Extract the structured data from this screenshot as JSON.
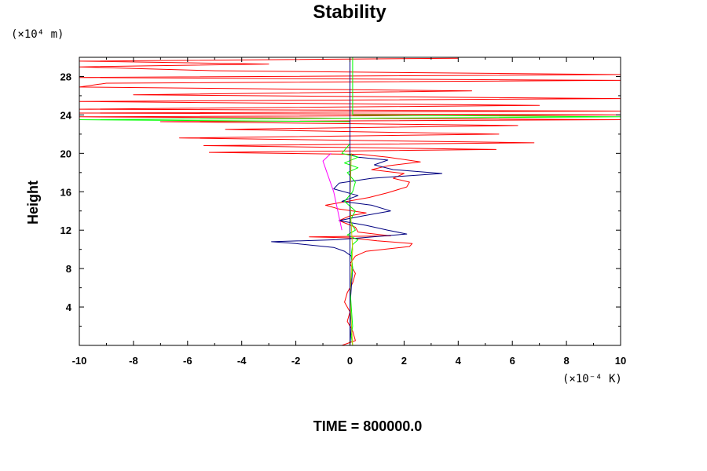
{
  "chart_data": {
    "type": "line",
    "title": "Stability",
    "ylabel": "Height",
    "xlabel": "",
    "y_unit": "(×10⁴ m)",
    "x_unit": "(×10⁻⁴ K)",
    "footer": "TIME = 800000.0",
    "xlim": [
      -10,
      10
    ],
    "ylim": [
      0,
      30
    ],
    "x_ticks": [
      -10,
      -8,
      -6,
      -4,
      -2,
      0,
      2,
      4,
      6,
      8,
      10
    ],
    "x_tick_labels": [
      "-10",
      "-8",
      "-6",
      "-4",
      "-2",
      "0",
      "2",
      "4",
      "6",
      "8",
      "10"
    ],
    "y_ticks": [
      4,
      8,
      12,
      16,
      20,
      24,
      28
    ],
    "y_tick_labels": [
      "4",
      "8",
      "12",
      "16",
      "20",
      "24",
      "28"
    ],
    "grid": false,
    "legend": "none",
    "series": [
      {
        "color": "#ff0000",
        "points": [
          [
            -0.3,
            0
          ],
          [
            0.2,
            0.5
          ],
          [
            0.1,
            1.5
          ],
          [
            -0.1,
            2.5
          ],
          [
            0.0,
            3.5
          ],
          [
            -0.2,
            4.5
          ],
          [
            -0.1,
            5.5
          ],
          [
            0.1,
            6.5
          ],
          [
            0.2,
            7.5
          ],
          [
            0.0,
            8.5
          ],
          [
            0.2,
            9.3
          ],
          [
            0.6,
            9.8
          ],
          [
            2.2,
            10.3
          ],
          [
            2.3,
            10.6
          ],
          [
            1.0,
            10.9
          ],
          [
            0.0,
            11.2
          ],
          [
            -1.5,
            11.3
          ],
          [
            1.5,
            11.4
          ],
          [
            0.3,
            11.8
          ],
          [
            0.2,
            12.3
          ],
          [
            -0.4,
            13.0
          ],
          [
            0.0,
            13.5
          ],
          [
            0.6,
            13.8
          ],
          [
            -0.4,
            14.2
          ],
          [
            -0.9,
            14.6
          ],
          [
            -0.1,
            15.0
          ],
          [
            0.7,
            15.4
          ],
          [
            1.4,
            15.9
          ],
          [
            2.1,
            16.5
          ],
          [
            2.2,
            17.0
          ],
          [
            1.6,
            17.4
          ],
          [
            2.0,
            17.9
          ],
          [
            0.8,
            18.3
          ],
          [
            1.4,
            18.7
          ],
          [
            2.6,
            19.1
          ],
          [
            1.4,
            19.6
          ],
          [
            0.4,
            19.9
          ],
          [
            -5.2,
            20.1
          ],
          [
            5.4,
            20.4
          ],
          [
            -5.4,
            20.8
          ],
          [
            6.8,
            21.1
          ],
          [
            -6.3,
            21.6
          ],
          [
            5.5,
            22.0
          ],
          [
            -4.6,
            22.5
          ],
          [
            6.2,
            22.9
          ],
          [
            -7.0,
            23.3
          ],
          [
            10,
            23.5
          ],
          [
            -10,
            23.8
          ],
          [
            10,
            24.0
          ],
          [
            -10,
            24.2
          ],
          [
            10,
            24.4
          ],
          [
            -10,
            24.6
          ],
          [
            7.0,
            25.0
          ],
          [
            -10,
            25.4
          ],
          [
            10,
            25.7
          ],
          [
            -8.0,
            26.1
          ],
          [
            4.5,
            26.5
          ],
          [
            -10,
            26.9
          ],
          [
            -9.0,
            27.3
          ],
          [
            10,
            27.6
          ],
          [
            -10,
            27.9
          ],
          [
            10,
            28.2
          ],
          [
            -5.0,
            28.6
          ],
          [
            -10,
            29.0
          ],
          [
            -3.0,
            29.3
          ],
          [
            -10,
            29.6
          ],
          [
            4.0,
            29.9
          ]
        ]
      },
      {
        "color": "#000080",
        "points": [
          [
            0,
            0
          ],
          [
            0.05,
            2
          ],
          [
            0.0,
            4
          ],
          [
            0.05,
            6
          ],
          [
            0.1,
            8
          ],
          [
            0.05,
            9.3
          ],
          [
            -0.2,
            9.8
          ],
          [
            -0.6,
            10.2
          ],
          [
            -2.0,
            10.6
          ],
          [
            -2.9,
            10.8
          ],
          [
            -0.5,
            11.0
          ],
          [
            0.4,
            11.2
          ],
          [
            2.1,
            11.6
          ],
          [
            1.4,
            12.0
          ],
          [
            0.6,
            12.5
          ],
          [
            -0.4,
            13.0
          ],
          [
            0.5,
            13.5
          ],
          [
            1.5,
            14.0
          ],
          [
            0.8,
            14.6
          ],
          [
            -0.3,
            15.0
          ],
          [
            0.3,
            15.6
          ],
          [
            -0.6,
            16.3
          ],
          [
            -0.4,
            16.9
          ],
          [
            0.8,
            17.4
          ],
          [
            3.4,
            17.9
          ],
          [
            1.6,
            18.3
          ],
          [
            0.9,
            18.8
          ],
          [
            1.4,
            19.3
          ],
          [
            0.3,
            19.6
          ],
          [
            0.0,
            19.9
          ],
          [
            0.0,
            30
          ]
        ]
      },
      {
        "color": "#00ff00",
        "points": [
          [
            0.1,
            0
          ],
          [
            0.05,
            1
          ],
          [
            0.1,
            2
          ],
          [
            0.05,
            4
          ],
          [
            0.0,
            6
          ],
          [
            0.1,
            8
          ],
          [
            0.05,
            9.5
          ],
          [
            0.1,
            10.5
          ],
          [
            0.3,
            11.0
          ],
          [
            -0.1,
            11.5
          ],
          [
            0.2,
            12
          ],
          [
            0.0,
            13
          ],
          [
            0.2,
            14
          ],
          [
            -0.2,
            15
          ],
          [
            0.1,
            16
          ],
          [
            0.2,
            17
          ],
          [
            -0.1,
            18
          ],
          [
            0.3,
            18.5
          ],
          [
            -0.2,
            19
          ],
          [
            0.3,
            19.6
          ],
          [
            -0.3,
            20.0
          ],
          [
            0.0,
            21
          ],
          [
            0.0,
            23.3
          ],
          [
            -10,
            23.5
          ],
          [
            10,
            23.8
          ],
          [
            0.1,
            24.0
          ],
          [
            0.1,
            30
          ]
        ]
      },
      {
        "color": "#ff00ff",
        "points": [
          [
            -0.3,
            12.0
          ],
          [
            -0.45,
            14.0
          ],
          [
            -0.6,
            16.0
          ],
          [
            -0.85,
            18.0
          ],
          [
            -1.0,
            19.2
          ],
          [
            -0.7,
            20.0
          ]
        ]
      },
      {
        "color": "#c8c800",
        "points": [
          [
            0.1,
            0
          ],
          [
            0.0,
            5
          ],
          [
            0.1,
            10
          ],
          [
            0.0,
            15
          ],
          [
            0.05,
            20
          ]
        ]
      }
    ]
  }
}
